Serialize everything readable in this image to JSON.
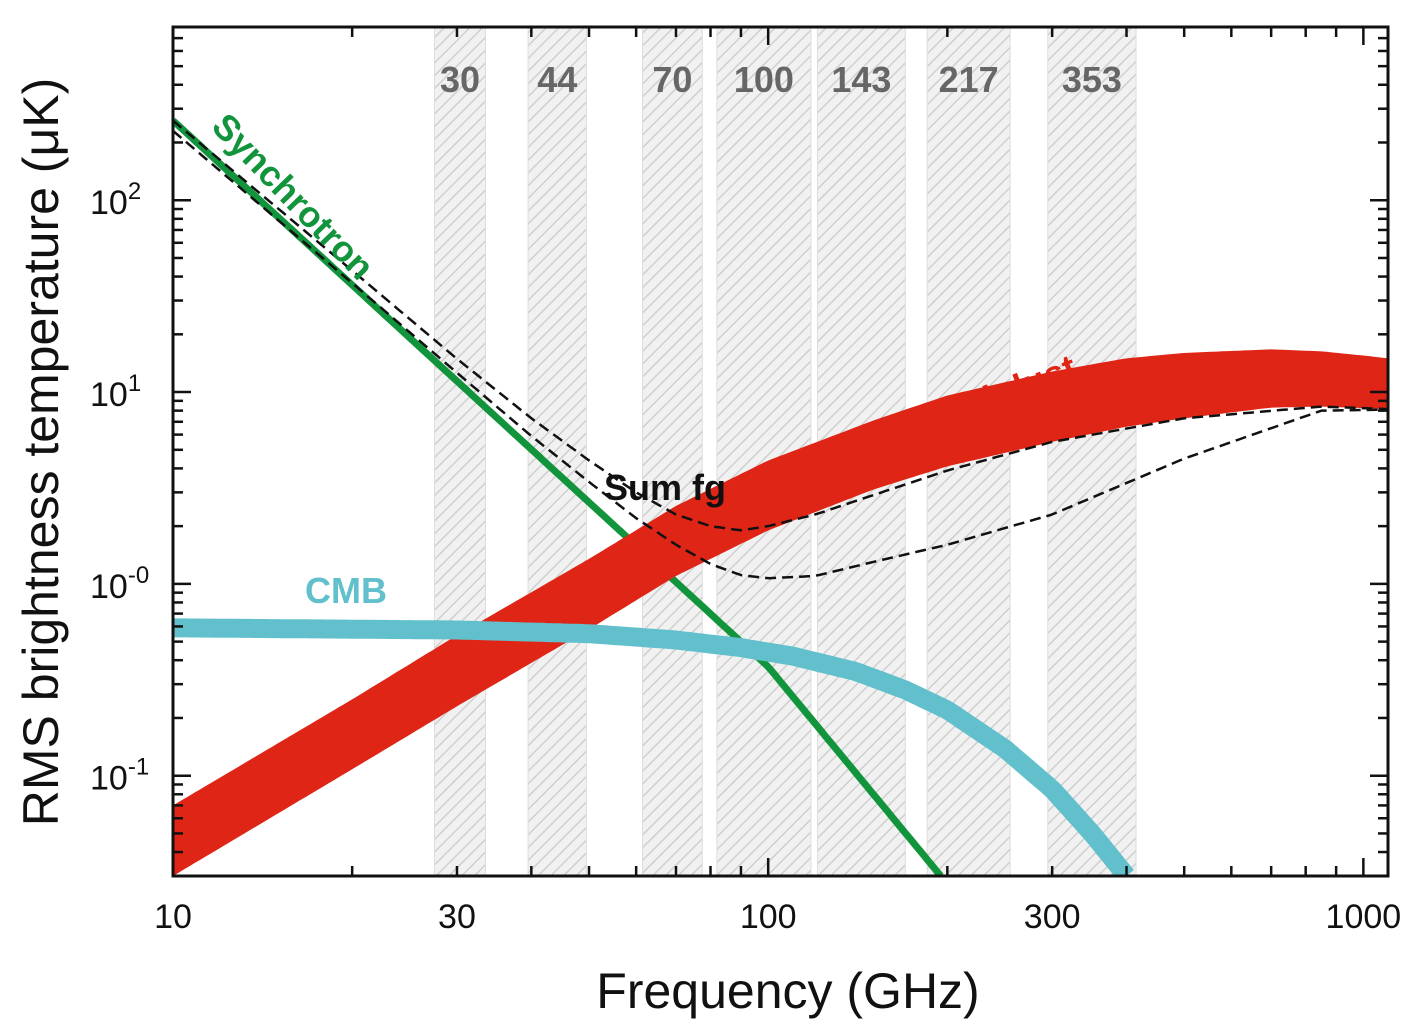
{
  "chart_data": {
    "type": "line",
    "title": "",
    "xlabel": "Frequency (GHz)",
    "ylabel": "RMS brightness temperature (μK)",
    "xscale": "log",
    "yscale": "log",
    "xlim": [
      10,
      1100
    ],
    "ylim": [
      0.03,
      800
    ],
    "x_ticks": [
      {
        "value": 10,
        "label": "10"
      },
      {
        "value": 30,
        "label": "30"
      },
      {
        "value": 100,
        "label": "100"
      },
      {
        "value": 300,
        "label": "300"
      },
      {
        "value": 1000,
        "label": "1000"
      }
    ],
    "y_ticks": [
      {
        "value": 100,
        "base": "10",
        "exp": "2"
      },
      {
        "value": 10,
        "base": "10",
        "exp": "1"
      },
      {
        "value": 1,
        "base": "10",
        "exp": "-0"
      },
      {
        "value": 0.1,
        "base": "10",
        "exp": "-1"
      }
    ],
    "frequency_bands": [
      {
        "label": "30",
        "range": [
          27.5,
          33.5
        ]
      },
      {
        "label": "44",
        "range": [
          39.5,
          49.5
        ]
      },
      {
        "label": "70",
        "range": [
          61.5,
          77.5
        ]
      },
      {
        "label": "100",
        "range": [
          82,
          118
        ]
      },
      {
        "label": "143",
        "range": [
          121,
          170
        ]
      },
      {
        "label": "217",
        "range": [
          185,
          255
        ]
      },
      {
        "label": "353",
        "range": [
          295,
          415
        ]
      }
    ],
    "series": [
      {
        "name": "Synchrotron",
        "color": "#12943c",
        "x": [
          10,
          100,
          195
        ],
        "y": [
          260,
          0.37,
          0.03
        ]
      },
      {
        "name": "Thermal dust",
        "color": "#df2616",
        "style": "band",
        "x": [
          10,
          20,
          30,
          50,
          70,
          100,
          150,
          200,
          300,
          400,
          500,
          700,
          850,
          1000,
          1100
        ],
        "y_upper": [
          0.07,
          0.25,
          0.54,
          1.35,
          2.55,
          4.4,
          7.1,
          9.6,
          12.8,
          15.0,
          16.0,
          16.7,
          16.3,
          15.5,
          15.0
        ],
        "y_lower": [
          0.03,
          0.108,
          0.23,
          0.58,
          1.1,
          1.9,
          3.1,
          4.1,
          5.5,
          6.6,
          7.3,
          8.3,
          8.4,
          8.25,
          8.15
        ]
      },
      {
        "name": "CMB",
        "color": "#62c0cc",
        "x": [
          10,
          30,
          50,
          70,
          90,
          110,
          140,
          170,
          200,
          250,
          300,
          350,
          400
        ],
        "y": [
          0.59,
          0.575,
          0.55,
          0.51,
          0.465,
          0.42,
          0.35,
          0.28,
          0.22,
          0.138,
          0.085,
          0.05,
          0.03
        ]
      },
      {
        "name": "Sum fg",
        "color": "#111111",
        "style": "dashed-envelope",
        "x": [
          10,
          20,
          30,
          40,
          50,
          60,
          70,
          80,
          90,
          100,
          120,
          150,
          200,
          300,
          500,
          850,
          1100
        ],
        "y_upper": [
          260,
          43,
          14.9,
          7.3,
          4.4,
          3.0,
          2.3,
          2.0,
          1.9,
          2.0,
          2.3,
          2.9,
          3.9,
          5.5,
          7.3,
          8.4,
          8.15
        ],
        "y_lower": [
          230,
          37,
          12.6,
          5.9,
          3.4,
          2.2,
          1.6,
          1.27,
          1.11,
          1.07,
          1.1,
          1.3,
          1.6,
          2.3,
          4.5,
          8.0,
          8.1
        ]
      }
    ],
    "annotations": [
      {
        "text": "Synchrotron",
        "color": "#12943c"
      },
      {
        "text": "Thermal dust",
        "color": "#df2616"
      },
      {
        "text": "CMB",
        "color": "#62c0cc"
      },
      {
        "text": "Sum fg",
        "color": "#111111"
      }
    ]
  }
}
